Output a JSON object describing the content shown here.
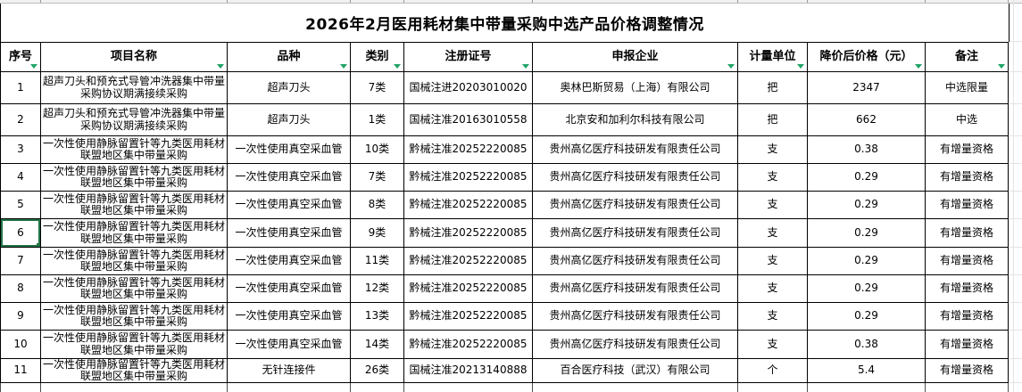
{
  "title": "2026年2月医用耗材集中带量采购中选产品价格调整情况",
  "columns": [
    {
      "key": "seq",
      "label": "序号"
    },
    {
      "key": "project-name",
      "label": "项目名称"
    },
    {
      "key": "variety",
      "label": "品种"
    },
    {
      "key": "category",
      "label": "类别"
    },
    {
      "key": "registration-no",
      "label": "注册证号"
    },
    {
      "key": "company",
      "label": "申报企业"
    },
    {
      "key": "unit",
      "label": "计量单位"
    },
    {
      "key": "price-after-cut",
      "label": "降价后价格（元）"
    },
    {
      "key": "remark",
      "label": "备注"
    }
  ],
  "rows": [
    [
      "1",
      "超声刀头和预充式导管冲洗器集中带量采购协议期满接续采购",
      "超声刀头",
      "7类",
      "国械注进20203010020",
      "奥林巴斯贸易（上海）有限公司",
      "把",
      "2347",
      "中选限量"
    ],
    [
      "2",
      "超声刀头和预充式导管冲洗器集中带量采购协议期满接续采购",
      "超声刀头",
      "1类",
      "国械注准20163010558",
      "北京安和加利尔科技有限公司",
      "把",
      "662",
      "中选"
    ],
    [
      "3",
      "一次性使用静脉留置针等九类医用耗材联盟地区集中带量采购",
      "一次性使用真空采血管",
      "10类",
      "黔械注准20252220085",
      "贵州高亿医疗科技研发有限责任公司",
      "支",
      "0.38",
      "有增量资格"
    ],
    [
      "4",
      "一次性使用静脉留置针等九类医用耗材联盟地区集中带量采购",
      "一次性使用真空采血管",
      "7类",
      "黔械注准20252220085",
      "贵州高亿医疗科技研发有限责任公司",
      "支",
      "0.29",
      "有增量资格"
    ],
    [
      "5",
      "一次性使用静脉留置针等九类医用耗材联盟地区集中带量采购",
      "一次性使用真空采血管",
      "8类",
      "黔械注准20252220085",
      "贵州高亿医疗科技研发有限责任公司",
      "支",
      "0.29",
      "有增量资格"
    ],
    [
      "6",
      "一次性使用静脉留置针等九类医用耗材联盟地区集中带量采购",
      "一次性使用真空采血管",
      "9类",
      "黔械注准20252220085",
      "贵州高亿医疗科技研发有限责任公司",
      "支",
      "0.29",
      "有增量资格"
    ],
    [
      "7",
      "一次性使用静脉留置针等九类医用耗材联盟地区集中带量采购",
      "一次性使用真空采血管",
      "11类",
      "黔械注准20252220085",
      "贵州高亿医疗科技研发有限责任公司",
      "支",
      "0.29",
      "有增量资格"
    ],
    [
      "8",
      "一次性使用静脉留置针等九类医用耗材联盟地区集中带量采购",
      "一次性使用真空采血管",
      "12类",
      "黔械注准20252220085",
      "贵州高亿医疗科技研发有限责任公司",
      "支",
      "0.29",
      "有增量资格"
    ],
    [
      "9",
      "一次性使用静脉留置针等九类医用耗材联盟地区集中带量采购",
      "一次性使用真空采血管",
      "13类",
      "黔械注准20252220085",
      "贵州高亿医疗科技研发有限责任公司",
      "支",
      "0.29",
      "有增量资格"
    ],
    [
      "10",
      "一次性使用静脉留置针等九类医用耗材联盟地区集中带量采购",
      "一次性使用真空采血管",
      "14类",
      "黔械注准20252220085",
      "贵州高亿医疗科技研发有限责任公司",
      "支",
      "0.38",
      "有增量资格"
    ],
    [
      "11",
      "一次性使用静脉留置针等九类医用耗材联盟地区集中带量采购",
      "无针连接件",
      "26类",
      "国械注准20213140888",
      "百合医疗科技（武汉）有限公司",
      "个",
      "5.4",
      "有增量资格"
    ]
  ],
  "selected_cell": {
    "row_seq": "6",
    "column_key": "seq"
  },
  "icons": {
    "filter_dropdown": "filter-dropdown-icon"
  },
  "colors": {
    "filter_arrow_green": "#21a366",
    "selection_green": "#217346",
    "table_border": "#000000",
    "gridline_gray": "#e3e3e3"
  }
}
